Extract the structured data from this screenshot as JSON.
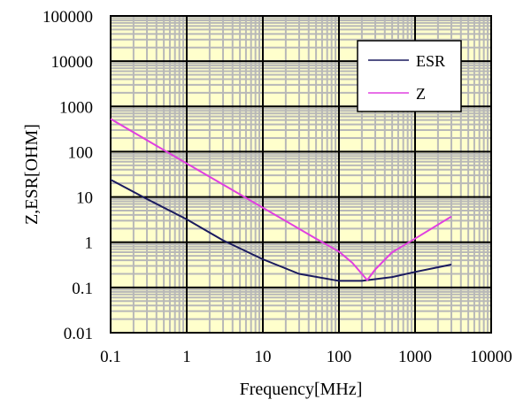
{
  "chart_data": {
    "type": "line",
    "xlabel": "Frequency[MHz]",
    "ylabel": "Z,ESR[OHM]",
    "x_scale": "log",
    "y_scale": "log",
    "xlim": [
      0.1,
      10000
    ],
    "ylim": [
      0.01,
      100000
    ],
    "x_ticks": [
      "0.1",
      "1",
      "10",
      "100",
      "1000",
      "10000"
    ],
    "y_ticks": [
      "0.01",
      "0.1",
      "1",
      "10",
      "100",
      "1000",
      "10000",
      "100000"
    ],
    "grid": true,
    "legend_position": "top-right",
    "plot_background": "#ffffcc",
    "series": [
      {
        "name": "ESR",
        "color": "#1a1a5e",
        "x": [
          0.1,
          0.3,
          1,
          3,
          10,
          30,
          100,
          200,
          500,
          1000,
          3000
        ],
        "y": [
          24,
          9,
          3.2,
          1.1,
          0.42,
          0.2,
          0.14,
          0.14,
          0.17,
          0.22,
          0.32
        ]
      },
      {
        "name": "Z",
        "color": "#e040e0",
        "x": [
          0.1,
          1,
          10,
          50,
          100,
          150,
          200,
          235,
          300,
          500,
          1000,
          3000
        ],
        "y": [
          530,
          55,
          5.8,
          1.2,
          0.62,
          0.35,
          0.2,
          0.145,
          0.25,
          0.6,
          1.2,
          3.7
        ]
      }
    ]
  }
}
